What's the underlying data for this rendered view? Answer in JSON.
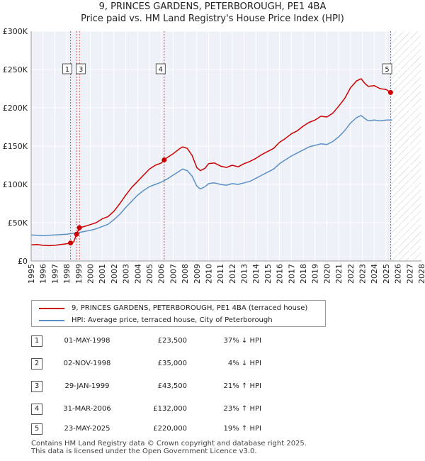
{
  "chart_data": {
    "type": "line",
    "title": "9, PRINCES GARDENS, PETERBOROUGH, PE1 4BA",
    "subtitle": "Price paid vs. HM Land Registry's House Price Index (HPI)",
    "xlim": [
      1995,
      2028
    ],
    "ylim": [
      0,
      300000
    ],
    "x_ticks": [
      "1995",
      "1996",
      "1997",
      "1998",
      "1999",
      "2000",
      "2001",
      "2002",
      "2003",
      "2004",
      "2005",
      "2006",
      "2007",
      "2008",
      "2009",
      "2010",
      "2011",
      "2012",
      "2013",
      "2014",
      "2015",
      "2016",
      "2017",
      "2018",
      "2019",
      "2020",
      "2021",
      "2022",
      "2023",
      "2024",
      "2025",
      "2026",
      "2027",
      "2028"
    ],
    "y_ticks": [
      {
        "value": 0,
        "label": "£0"
      },
      {
        "value": 50000,
        "label": "£50K"
      },
      {
        "value": 100000,
        "label": "£100K"
      },
      {
        "value": 150000,
        "label": "£150K"
      },
      {
        "value": 200000,
        "label": "£200K"
      },
      {
        "value": 250000,
        "label": "£250K"
      },
      {
        "value": 300000,
        "label": "£300K"
      }
    ],
    "projection_start": 2025.5,
    "series": [
      {
        "name": "9, PRINCES GARDENS, PETERBOROUGH, PE1 4BA (terraced house)",
        "color": "#cc0000",
        "points": [
          [
            1995.0,
            21000
          ],
          [
            1995.5,
            21500
          ],
          [
            1996.0,
            20500
          ],
          [
            1996.5,
            20000
          ],
          [
            1997.0,
            20500
          ],
          [
            1997.5,
            21500
          ],
          [
            1998.0,
            22500
          ],
          [
            1998.33,
            23500
          ],
          [
            1998.6,
            25000
          ],
          [
            1998.84,
            35000
          ],
          [
            1999.08,
            43500
          ],
          [
            1999.5,
            45000
          ],
          [
            2000.0,
            47500
          ],
          [
            2000.5,
            50000
          ],
          [
            2001.0,
            55000
          ],
          [
            2001.5,
            58000
          ],
          [
            2002.0,
            65000
          ],
          [
            2002.5,
            75000
          ],
          [
            2003.0,
            86000
          ],
          [
            2003.5,
            96000
          ],
          [
            2004.0,
            104000
          ],
          [
            2004.5,
            112000
          ],
          [
            2005.0,
            120000
          ],
          [
            2005.5,
            125000
          ],
          [
            2006.0,
            128000
          ],
          [
            2006.25,
            132000
          ],
          [
            2006.5,
            135000
          ],
          [
            2007.0,
            140000
          ],
          [
            2007.5,
            146000
          ],
          [
            2007.8,
            149000
          ],
          [
            2008.2,
            147000
          ],
          [
            2008.6,
            138000
          ],
          [
            2009.0,
            122000
          ],
          [
            2009.3,
            118000
          ],
          [
            2009.7,
            121000
          ],
          [
            2010.0,
            127000
          ],
          [
            2010.5,
            128000
          ],
          [
            2011.0,
            124000
          ],
          [
            2011.5,
            122000
          ],
          [
            2012.0,
            125000
          ],
          [
            2012.5,
            123000
          ],
          [
            2013.0,
            127000
          ],
          [
            2013.5,
            130000
          ],
          [
            2014.0,
            134000
          ],
          [
            2014.5,
            139000
          ],
          [
            2015.0,
            143000
          ],
          [
            2015.5,
            147000
          ],
          [
            2016.0,
            155000
          ],
          [
            2016.5,
            160000
          ],
          [
            2017.0,
            166000
          ],
          [
            2017.5,
            170000
          ],
          [
            2018.0,
            176000
          ],
          [
            2018.5,
            181000
          ],
          [
            2019.0,
            184000
          ],
          [
            2019.5,
            189000
          ],
          [
            2020.0,
            188000
          ],
          [
            2020.5,
            193000
          ],
          [
            2021.0,
            202000
          ],
          [
            2021.5,
            212000
          ],
          [
            2022.0,
            226000
          ],
          [
            2022.5,
            235000
          ],
          [
            2022.9,
            238000
          ],
          [
            2023.2,
            232000
          ],
          [
            2023.5,
            228000
          ],
          [
            2024.0,
            229000
          ],
          [
            2024.5,
            225000
          ],
          [
            2025.0,
            224000
          ],
          [
            2025.39,
            220000
          ]
        ]
      },
      {
        "name": "HPI: Average price, terraced house, City of Peterborough",
        "color": "#5b8fc7",
        "points": [
          [
            1995.0,
            34000
          ],
          [
            1995.5,
            33500
          ],
          [
            1996.0,
            33000
          ],
          [
            1996.5,
            33500
          ],
          [
            1997.0,
            34000
          ],
          [
            1997.5,
            34500
          ],
          [
            1998.0,
            35000
          ],
          [
            1998.5,
            36000
          ],
          [
            1999.0,
            37000
          ],
          [
            1999.5,
            38500
          ],
          [
            2000.0,
            40000
          ],
          [
            2000.5,
            42000
          ],
          [
            2001.0,
            45000
          ],
          [
            2001.5,
            48000
          ],
          [
            2002.0,
            54000
          ],
          [
            2002.5,
            61000
          ],
          [
            2003.0,
            70000
          ],
          [
            2003.5,
            78000
          ],
          [
            2004.0,
            86000
          ],
          [
            2004.5,
            92000
          ],
          [
            2005.0,
            97000
          ],
          [
            2005.5,
            100000
          ],
          [
            2006.0,
            103000
          ],
          [
            2006.5,
            107000
          ],
          [
            2007.0,
            112000
          ],
          [
            2007.5,
            117000
          ],
          [
            2007.8,
            120000
          ],
          [
            2008.2,
            118000
          ],
          [
            2008.6,
            111000
          ],
          [
            2009.0,
            98000
          ],
          [
            2009.3,
            94000
          ],
          [
            2009.7,
            97000
          ],
          [
            2010.0,
            101000
          ],
          [
            2010.5,
            102000
          ],
          [
            2011.0,
            100000
          ],
          [
            2011.5,
            99000
          ],
          [
            2012.0,
            101000
          ],
          [
            2012.5,
            100000
          ],
          [
            2013.0,
            102000
          ],
          [
            2013.5,
            104000
          ],
          [
            2014.0,
            108000
          ],
          [
            2014.5,
            112000
          ],
          [
            2015.0,
            116000
          ],
          [
            2015.5,
            120000
          ],
          [
            2016.0,
            127000
          ],
          [
            2016.5,
            132000
          ],
          [
            2017.0,
            137000
          ],
          [
            2017.5,
            141000
          ],
          [
            2018.0,
            145000
          ],
          [
            2018.5,
            149000
          ],
          [
            2019.0,
            151000
          ],
          [
            2019.5,
            153000
          ],
          [
            2020.0,
            152000
          ],
          [
            2020.5,
            156000
          ],
          [
            2021.0,
            162000
          ],
          [
            2021.5,
            170000
          ],
          [
            2022.0,
            180000
          ],
          [
            2022.5,
            187000
          ],
          [
            2022.9,
            190000
          ],
          [
            2023.2,
            186000
          ],
          [
            2023.5,
            183000
          ],
          [
            2024.0,
            184000
          ],
          [
            2024.5,
            183000
          ],
          [
            2025.0,
            184000
          ],
          [
            2025.5,
            184000
          ]
        ]
      }
    ],
    "sales": [
      {
        "n": "1",
        "x": 1998.33,
        "price": 23500,
        "label_x": 1998.05
      },
      {
        "n": "2",
        "x": 1998.84,
        "price": 35000,
        "label_x": null
      },
      {
        "n": "3",
        "x": 1999.08,
        "price": 43500,
        "label_x": 1999.2
      },
      {
        "n": "4",
        "x": 2006.25,
        "price": 132000,
        "label_x": 2005.95
      },
      {
        "n": "5",
        "x": 2025.39,
        "price": 220000,
        "label_x": 2025.1
      }
    ],
    "legend": {
      "items": [
        {
          "label": "9, PRINCES GARDENS, PETERBOROUGH, PE1 4BA (terraced house)",
          "color": "#cc0000"
        },
        {
          "label": "HPI: Average price, terraced house, City of Peterborough",
          "color": "#5b8fc7"
        }
      ]
    }
  },
  "sales_table": [
    {
      "n": "1",
      "date": "01-MAY-1998",
      "price": "£23,500",
      "hpi": "37% ↓ HPI"
    },
    {
      "n": "2",
      "date": "02-NOV-1998",
      "price": "£35,000",
      "hpi": "4% ↓ HPI"
    },
    {
      "n": "3",
      "date": "29-JAN-1999",
      "price": "£43,500",
      "hpi": "21% ↑ HPI"
    },
    {
      "n": "4",
      "date": "31-MAR-2006",
      "price": "£132,000",
      "hpi": "23% ↑ HPI"
    },
    {
      "n": "5",
      "date": "23-MAY-2025",
      "price": "£220,000",
      "hpi": "19% ↑ HPI"
    }
  ],
  "footer": {
    "line1": "Contains HM Land Registry data © Crown copyright and database right 2025.",
    "line2": "This data is licensed under the Open Government Licence v3.0."
  }
}
